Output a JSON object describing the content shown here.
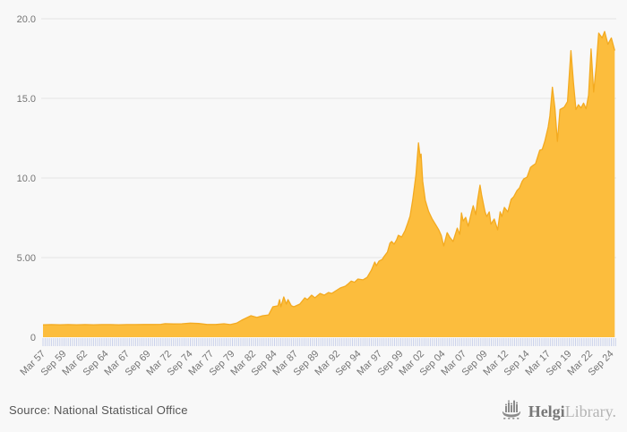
{
  "chart_data": {
    "type": "area",
    "title": "",
    "xlabel": "",
    "ylabel": "",
    "y_axis": {
      "range": [
        0,
        20
      ],
      "ticks": [
        0,
        5,
        10,
        15,
        20
      ],
      "tick_labels": [
        "0",
        "5.00",
        "10.0",
        "15.0",
        "20.0"
      ],
      "grid": true
    },
    "x_axis": {
      "range_years": [
        1957.0,
        2025.0
      ],
      "minor_tick_step_years": 0.25,
      "tick_years": [
        1957.0,
        1959.5,
        1962.0,
        1964.5,
        1967.0,
        1969.5,
        1972.0,
        1974.5,
        1977.0,
        1979.5,
        1982.0,
        1984.5,
        1987.0,
        1989.5,
        1992.0,
        1994.5,
        1997.0,
        1999.5,
        2002.0,
        2004.5,
        2007.0,
        2009.5,
        2012.0,
        2014.5,
        2017.0,
        2019.5,
        2022.0,
        2024.5
      ],
      "tick_labels": [
        "Mar 57",
        "Sep 59",
        "Mar 62",
        "Sep 64",
        "Mar 67",
        "Sep 69",
        "Mar 72",
        "Sep 74",
        "Mar 77",
        "Sep 79",
        "Mar 82",
        "Sep 84",
        "Mar 87",
        "Sep 89",
        "Mar 92",
        "Sep 94",
        "Mar 97",
        "Sep 99",
        "Mar 02",
        "Sep 04",
        "Mar 07",
        "Sep 09",
        "Mar 12",
        "Sep 14",
        "Mar 17",
        "Sep 19",
        "Mar 22",
        "Sep 24"
      ]
    },
    "points": [
      [
        1957.0,
        0.78
      ],
      [
        1958.0,
        0.79
      ],
      [
        1959.0,
        0.78
      ],
      [
        1960.0,
        0.79
      ],
      [
        1961.0,
        0.78
      ],
      [
        1962.0,
        0.79
      ],
      [
        1963.0,
        0.78
      ],
      [
        1964.0,
        0.79
      ],
      [
        1965.0,
        0.79
      ],
      [
        1966.0,
        0.78
      ],
      [
        1967.0,
        0.79
      ],
      [
        1968.0,
        0.79
      ],
      [
        1969.0,
        0.8
      ],
      [
        1970.0,
        0.8
      ],
      [
        1971.0,
        0.81
      ],
      [
        1971.5,
        0.85
      ],
      [
        1972.5,
        0.83
      ],
      [
        1973.5,
        0.84
      ],
      [
        1974.5,
        0.88
      ],
      [
        1975.5,
        0.86
      ],
      [
        1976.5,
        0.8
      ],
      [
        1977.5,
        0.8
      ],
      [
        1978.5,
        0.84
      ],
      [
        1979.25,
        0.79
      ],
      [
        1980.0,
        0.88
      ],
      [
        1980.6,
        1.07
      ],
      [
        1981.7,
        1.35
      ],
      [
        1982.4,
        1.24
      ],
      [
        1983.1,
        1.35
      ],
      [
        1983.8,
        1.4
      ],
      [
        1984.3,
        1.91
      ],
      [
        1984.9,
        1.97
      ],
      [
        1985.1,
        2.36
      ],
      [
        1985.25,
        1.91
      ],
      [
        1985.6,
        2.53
      ],
      [
        1985.9,
        2.08
      ],
      [
        1986.1,
        2.36
      ],
      [
        1986.5,
        1.97
      ],
      [
        1986.8,
        1.91
      ],
      [
        1987.5,
        2.08
      ],
      [
        1988.1,
        2.47
      ],
      [
        1988.4,
        2.36
      ],
      [
        1988.9,
        2.64
      ],
      [
        1989.3,
        2.47
      ],
      [
        1989.9,
        2.75
      ],
      [
        1990.4,
        2.64
      ],
      [
        1990.9,
        2.81
      ],
      [
        1991.3,
        2.75
      ],
      [
        1991.8,
        2.92
      ],
      [
        1992.3,
        3.09
      ],
      [
        1992.9,
        3.2
      ],
      [
        1993.3,
        3.37
      ],
      [
        1993.6,
        3.52
      ],
      [
        1994.0,
        3.45
      ],
      [
        1994.4,
        3.65
      ],
      [
        1995.0,
        3.6
      ],
      [
        1995.5,
        3.76
      ],
      [
        1996.0,
        4.21
      ],
      [
        1996.4,
        4.72
      ],
      [
        1996.6,
        4.49
      ],
      [
        1996.9,
        4.78
      ],
      [
        1997.3,
        4.89
      ],
      [
        1997.5,
        5.06
      ],
      [
        1997.9,
        5.34
      ],
      [
        1998.2,
        5.9
      ],
      [
        1998.4,
        6.01
      ],
      [
        1998.7,
        5.84
      ],
      [
        1999.0,
        6.12
      ],
      [
        1999.2,
        6.4
      ],
      [
        1999.6,
        6.29
      ],
      [
        2000.0,
        6.69
      ],
      [
        2000.3,
        7.13
      ],
      [
        2000.6,
        7.6
      ],
      [
        2000.9,
        8.6
      ],
      [
        2001.3,
        10.2
      ],
      [
        2001.6,
        12.2
      ],
      [
        2001.8,
        11.3
      ],
      [
        2001.9,
        11.5
      ],
      [
        2002.1,
        9.8
      ],
      [
        2002.4,
        8.6
      ],
      [
        2002.8,
        7.9
      ],
      [
        2003.2,
        7.45
      ],
      [
        2003.6,
        7.1
      ],
      [
        2004.0,
        6.75
      ],
      [
        2004.3,
        6.4
      ],
      [
        2004.6,
        5.73
      ],
      [
        2005.0,
        6.57
      ],
      [
        2005.3,
        6.29
      ],
      [
        2005.7,
        6.01
      ],
      [
        2006.2,
        6.85
      ],
      [
        2006.5,
        6.46
      ],
      [
        2006.7,
        7.81
      ],
      [
        2006.9,
        7.3
      ],
      [
        2007.2,
        7.53
      ],
      [
        2007.5,
        6.97
      ],
      [
        2007.9,
        7.87
      ],
      [
        2008.1,
        8.26
      ],
      [
        2008.4,
        7.7
      ],
      [
        2008.6,
        8.54
      ],
      [
        2008.9,
        9.55
      ],
      [
        2009.1,
        8.93
      ],
      [
        2009.5,
        7.87
      ],
      [
        2009.7,
        7.58
      ],
      [
        2010.0,
        7.87
      ],
      [
        2010.2,
        7.1
      ],
      [
        2010.6,
        7.42
      ],
      [
        2011.0,
        6.74
      ],
      [
        2011.3,
        7.87
      ],
      [
        2011.5,
        7.58
      ],
      [
        2011.8,
        8.15
      ],
      [
        2012.2,
        7.87
      ],
      [
        2012.6,
        8.65
      ],
      [
        2012.9,
        8.82
      ],
      [
        2013.3,
        9.21
      ],
      [
        2013.6,
        9.38
      ],
      [
        2013.9,
        9.78
      ],
      [
        2014.1,
        9.94
      ],
      [
        2014.5,
        10.06
      ],
      [
        2014.9,
        10.67
      ],
      [
        2015.2,
        10.79
      ],
      [
        2015.5,
        10.9
      ],
      [
        2016.0,
        11.74
      ],
      [
        2016.3,
        11.8
      ],
      [
        2016.6,
        12.3
      ],
      [
        2017.0,
        13.2
      ],
      [
        2017.2,
        13.9
      ],
      [
        2017.5,
        15.7
      ],
      [
        2017.8,
        14.4
      ],
      [
        2018.1,
        12.3
      ],
      [
        2018.4,
        14.3
      ],
      [
        2018.9,
        14.45
      ],
      [
        2019.3,
        14.8
      ],
      [
        2019.7,
        18.0
      ],
      [
        2020.0,
        16.0
      ],
      [
        2020.3,
        14.3
      ],
      [
        2020.6,
        14.6
      ],
      [
        2020.9,
        14.4
      ],
      [
        2021.2,
        14.7
      ],
      [
        2021.5,
        14.35
      ],
      [
        2021.8,
        15.2
      ],
      [
        2022.1,
        18.1
      ],
      [
        2022.4,
        15.4
      ],
      [
        2022.7,
        17.0
      ],
      [
        2023.0,
        19.1
      ],
      [
        2023.4,
        18.8
      ],
      [
        2023.7,
        19.2
      ],
      [
        2024.1,
        18.4
      ],
      [
        2024.5,
        18.8
      ],
      [
        2024.9,
        18.0
      ]
    ],
    "colors": {
      "fill": "#fcbd3d",
      "stroke": "#f3aa20",
      "grid": "#e4e4e4",
      "background": "#f8f8f8",
      "minor_tick": "#c8d0ea",
      "axis_label": "#757575"
    },
    "legend": null
  },
  "footer": {
    "source_label": "Source: National Statistical Office",
    "logo": {
      "brand_primary": "Helgi",
      "brand_secondary": "Library."
    }
  }
}
